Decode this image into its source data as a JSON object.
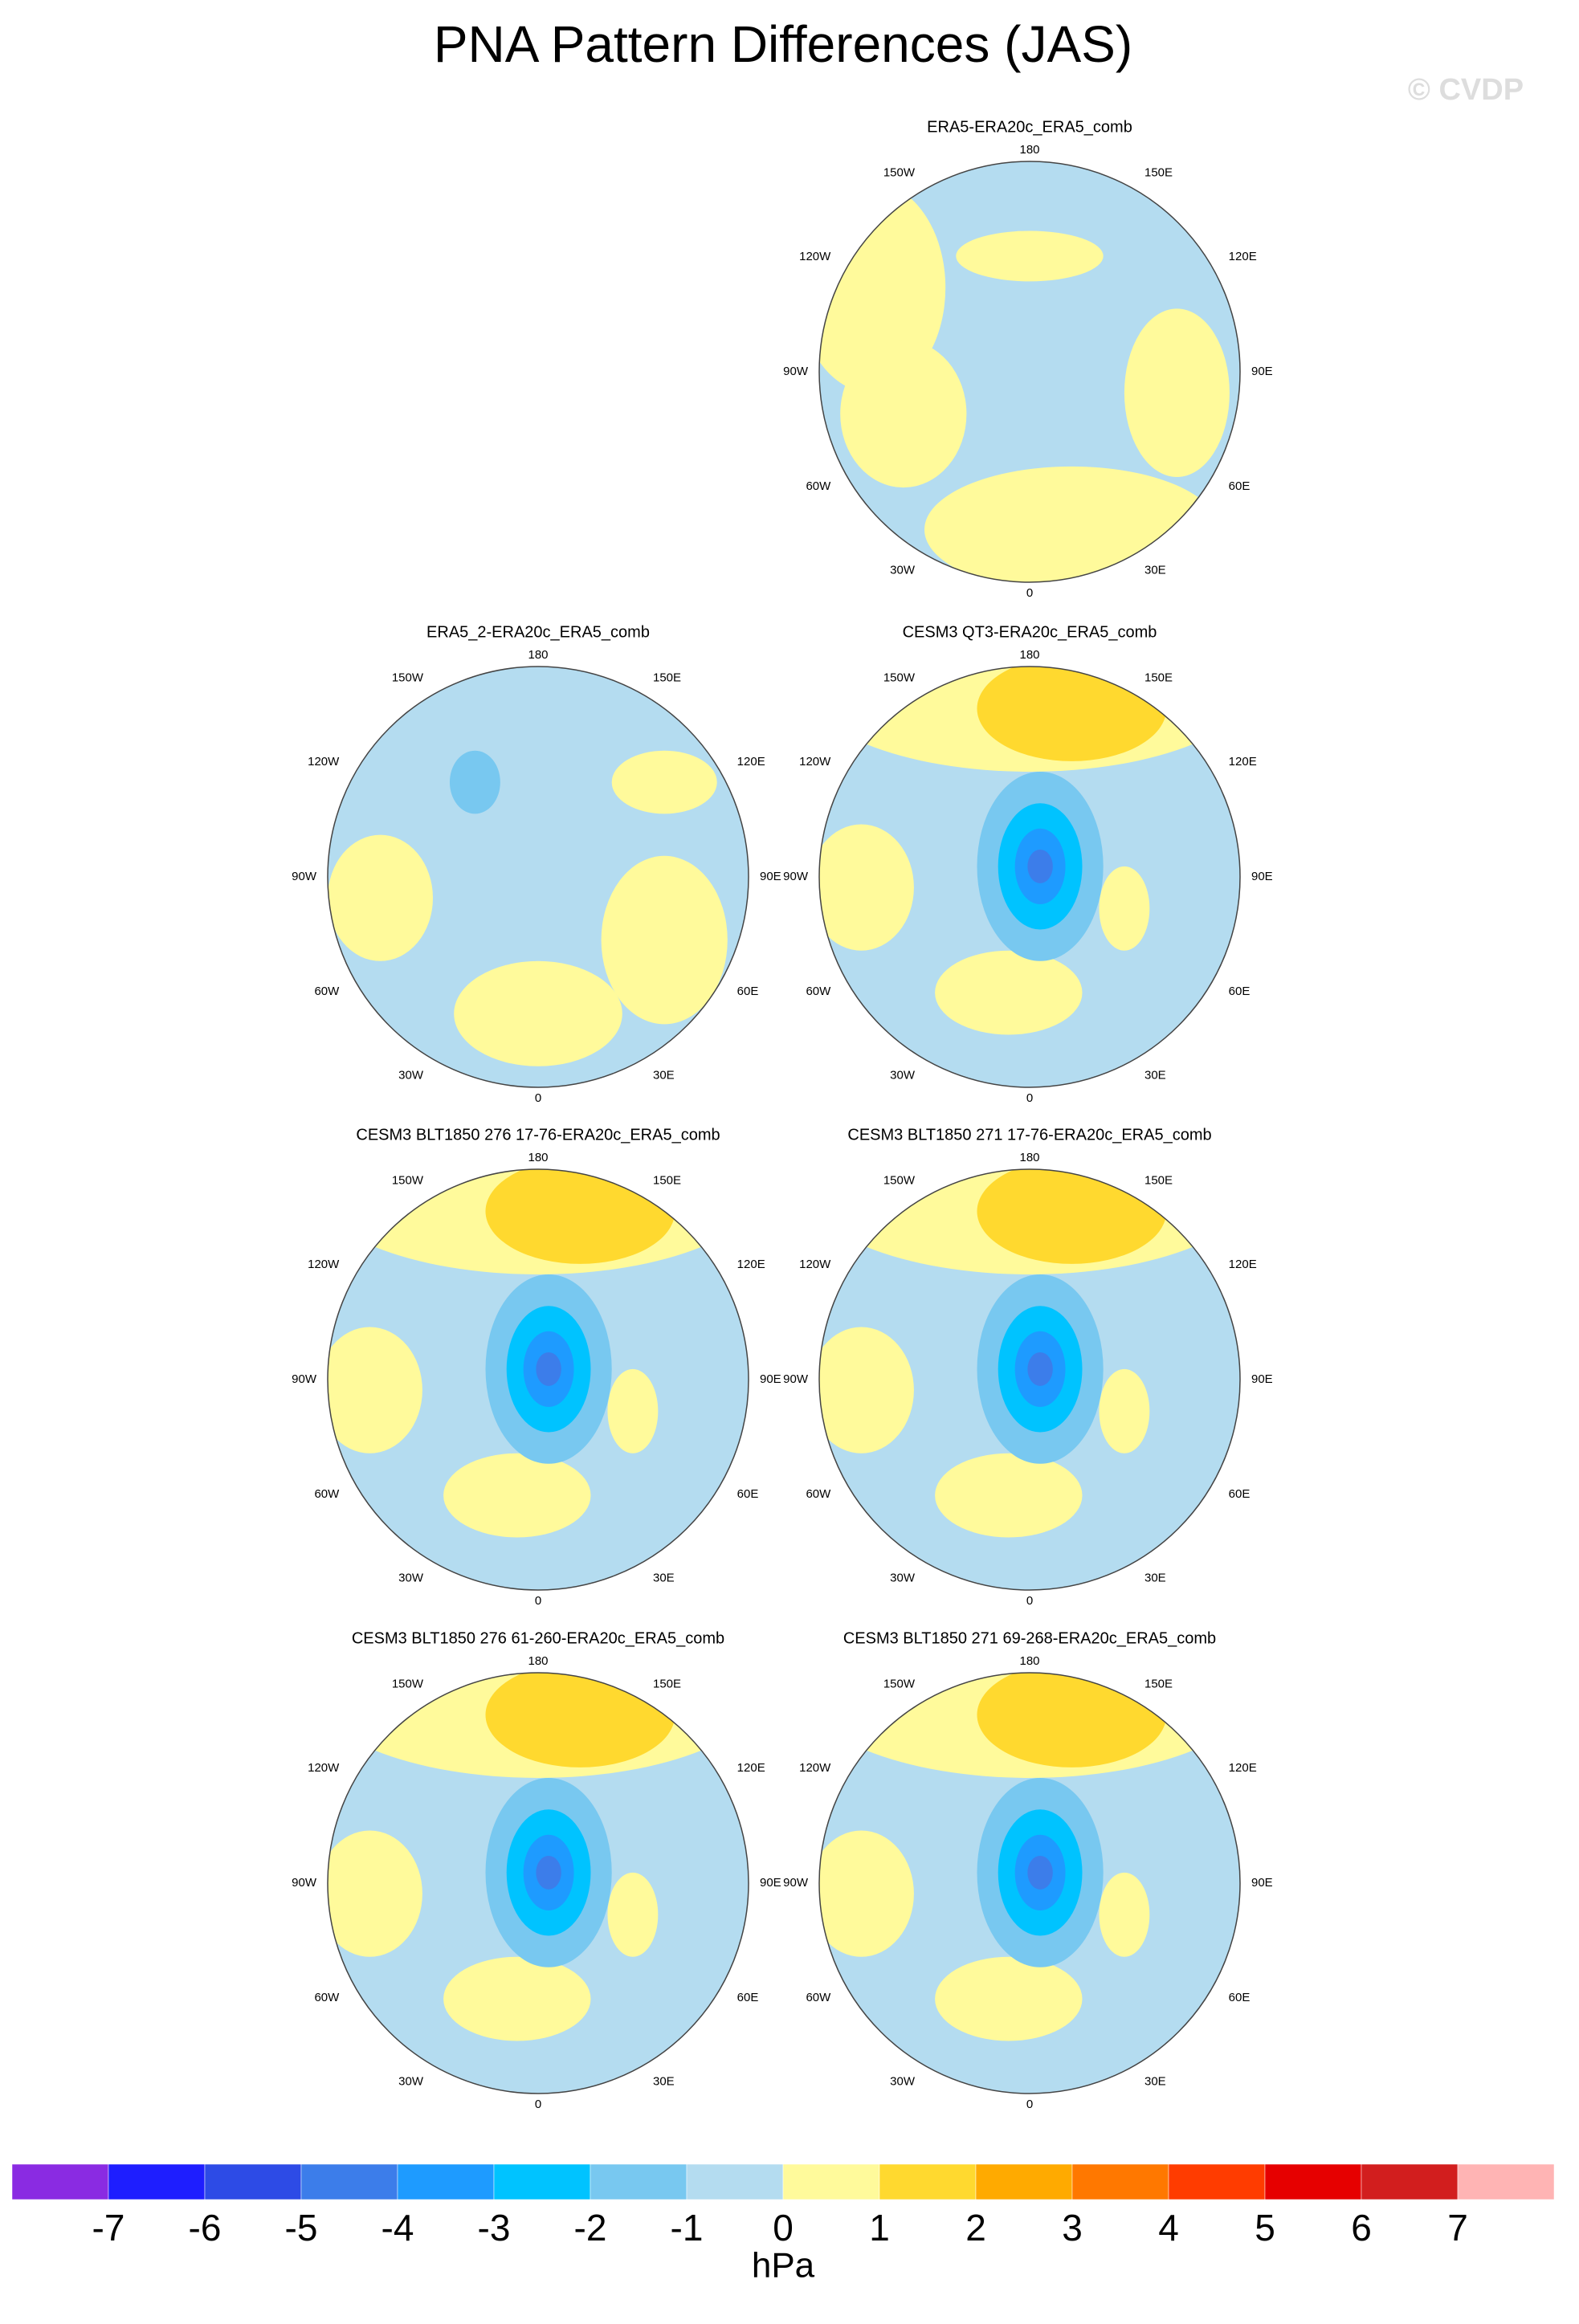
{
  "title": "PNA Pattern Differences (JAS)",
  "watermark": "© CVDP",
  "lon_labels": [
    "180",
    "150E",
    "120E",
    "90E",
    "60E",
    "30E",
    "0",
    "30W",
    "60W",
    "90W",
    "120W",
    "150W"
  ],
  "panels": [
    {
      "title": "ERA5-ERA20c_ERA5_comb"
    },
    {
      "title": "ERA5_2-ERA20c_ERA5_comb"
    },
    {
      "title": "CESM3 QT3-ERA20c_ERA5_comb"
    },
    {
      "title": "CESM3 BLT1850 276 17-76-ERA20c_ERA5_comb"
    },
    {
      "title": "CESM3 BLT1850 271 17-76-ERA20c_ERA5_comb"
    },
    {
      "title": "CESM3 BLT1850 276 61-260-ERA20c_ERA5_comb"
    },
    {
      "title": "CESM3 BLT1850 271 69-268-ERA20c_ERA5_comb"
    }
  ],
  "colorbar": {
    "colors": [
      "#8a2be2",
      "#1e1eff",
      "#2d4be6",
      "#3c7dea",
      "#1e9bff",
      "#00c3ff",
      "#78c8f0",
      "#b4dcf0",
      "#fffa9b",
      "#ffd92f",
      "#ffaa00",
      "#ff7800",
      "#ff3c00",
      "#e60000",
      "#d21e1e",
      "#ffb4b4"
    ],
    "ticks": [
      -7,
      -6,
      -5,
      -4,
      -3,
      -2,
      -1,
      0,
      1,
      2,
      3,
      4,
      5,
      6,
      7
    ],
    "label": "hPa"
  }
}
